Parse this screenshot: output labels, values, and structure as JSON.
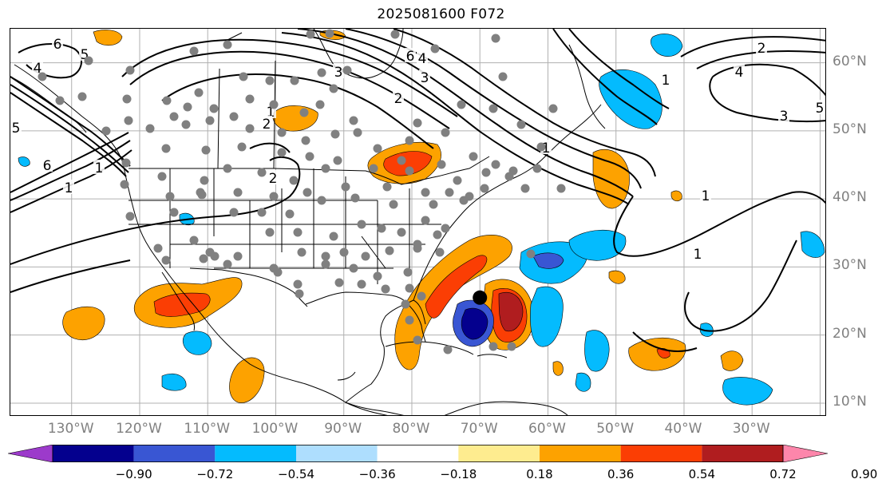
{
  "title": "2025081600 F072",
  "map": {
    "lon_range": [
      -139,
      -19
    ],
    "lat_range": [
      8,
      65
    ],
    "meridians": [
      -130,
      -120,
      -110,
      -100,
      -90,
      -80,
      -70,
      -60,
      -50,
      -40,
      -30,
      -20
    ],
    "parallels": [
      10,
      20,
      30,
      40,
      50,
      60
    ],
    "lon_labels": [
      "130°W",
      "120°W",
      "110°W",
      "100°W",
      "90°W",
      "80°W",
      "70°W",
      "60°W",
      "50°W",
      "40°W",
      "30°W"
    ],
    "lat_labels": [
      "10°N",
      "20°N",
      "30°N",
      "40°N",
      "50°N",
      "60°N"
    ],
    "gridline_color": "#b0b0b0",
    "axis_label_color": "#808080",
    "contour_labels": [
      "6",
      "4",
      "5",
      "3",
      "2",
      "1",
      "1",
      "5",
      "6",
      "4",
      "3",
      "2",
      "1",
      "1",
      "1",
      "3",
      "4",
      "5",
      "2",
      "1",
      "1",
      "6",
      "2"
    ],
    "storm_center": {
      "lon": -70.0,
      "lat": 25.5
    },
    "station_dot_color": "#808080"
  },
  "colorbar": {
    "colors": [
      "#9c3acb",
      "#04008e",
      "#3956d3",
      "#04bbfe",
      "#aedefe",
      "#ffffff",
      "#feec8f",
      "#fda200",
      "#fb3e04",
      "#b01d1f",
      "#fd86ab"
    ],
    "tick_labels": [
      "−0.90",
      "−0.72",
      "−0.54",
      "−0.36",
      "−0.18",
      "0.18",
      "0.36",
      "0.54",
      "0.72",
      "0.90"
    ]
  }
}
